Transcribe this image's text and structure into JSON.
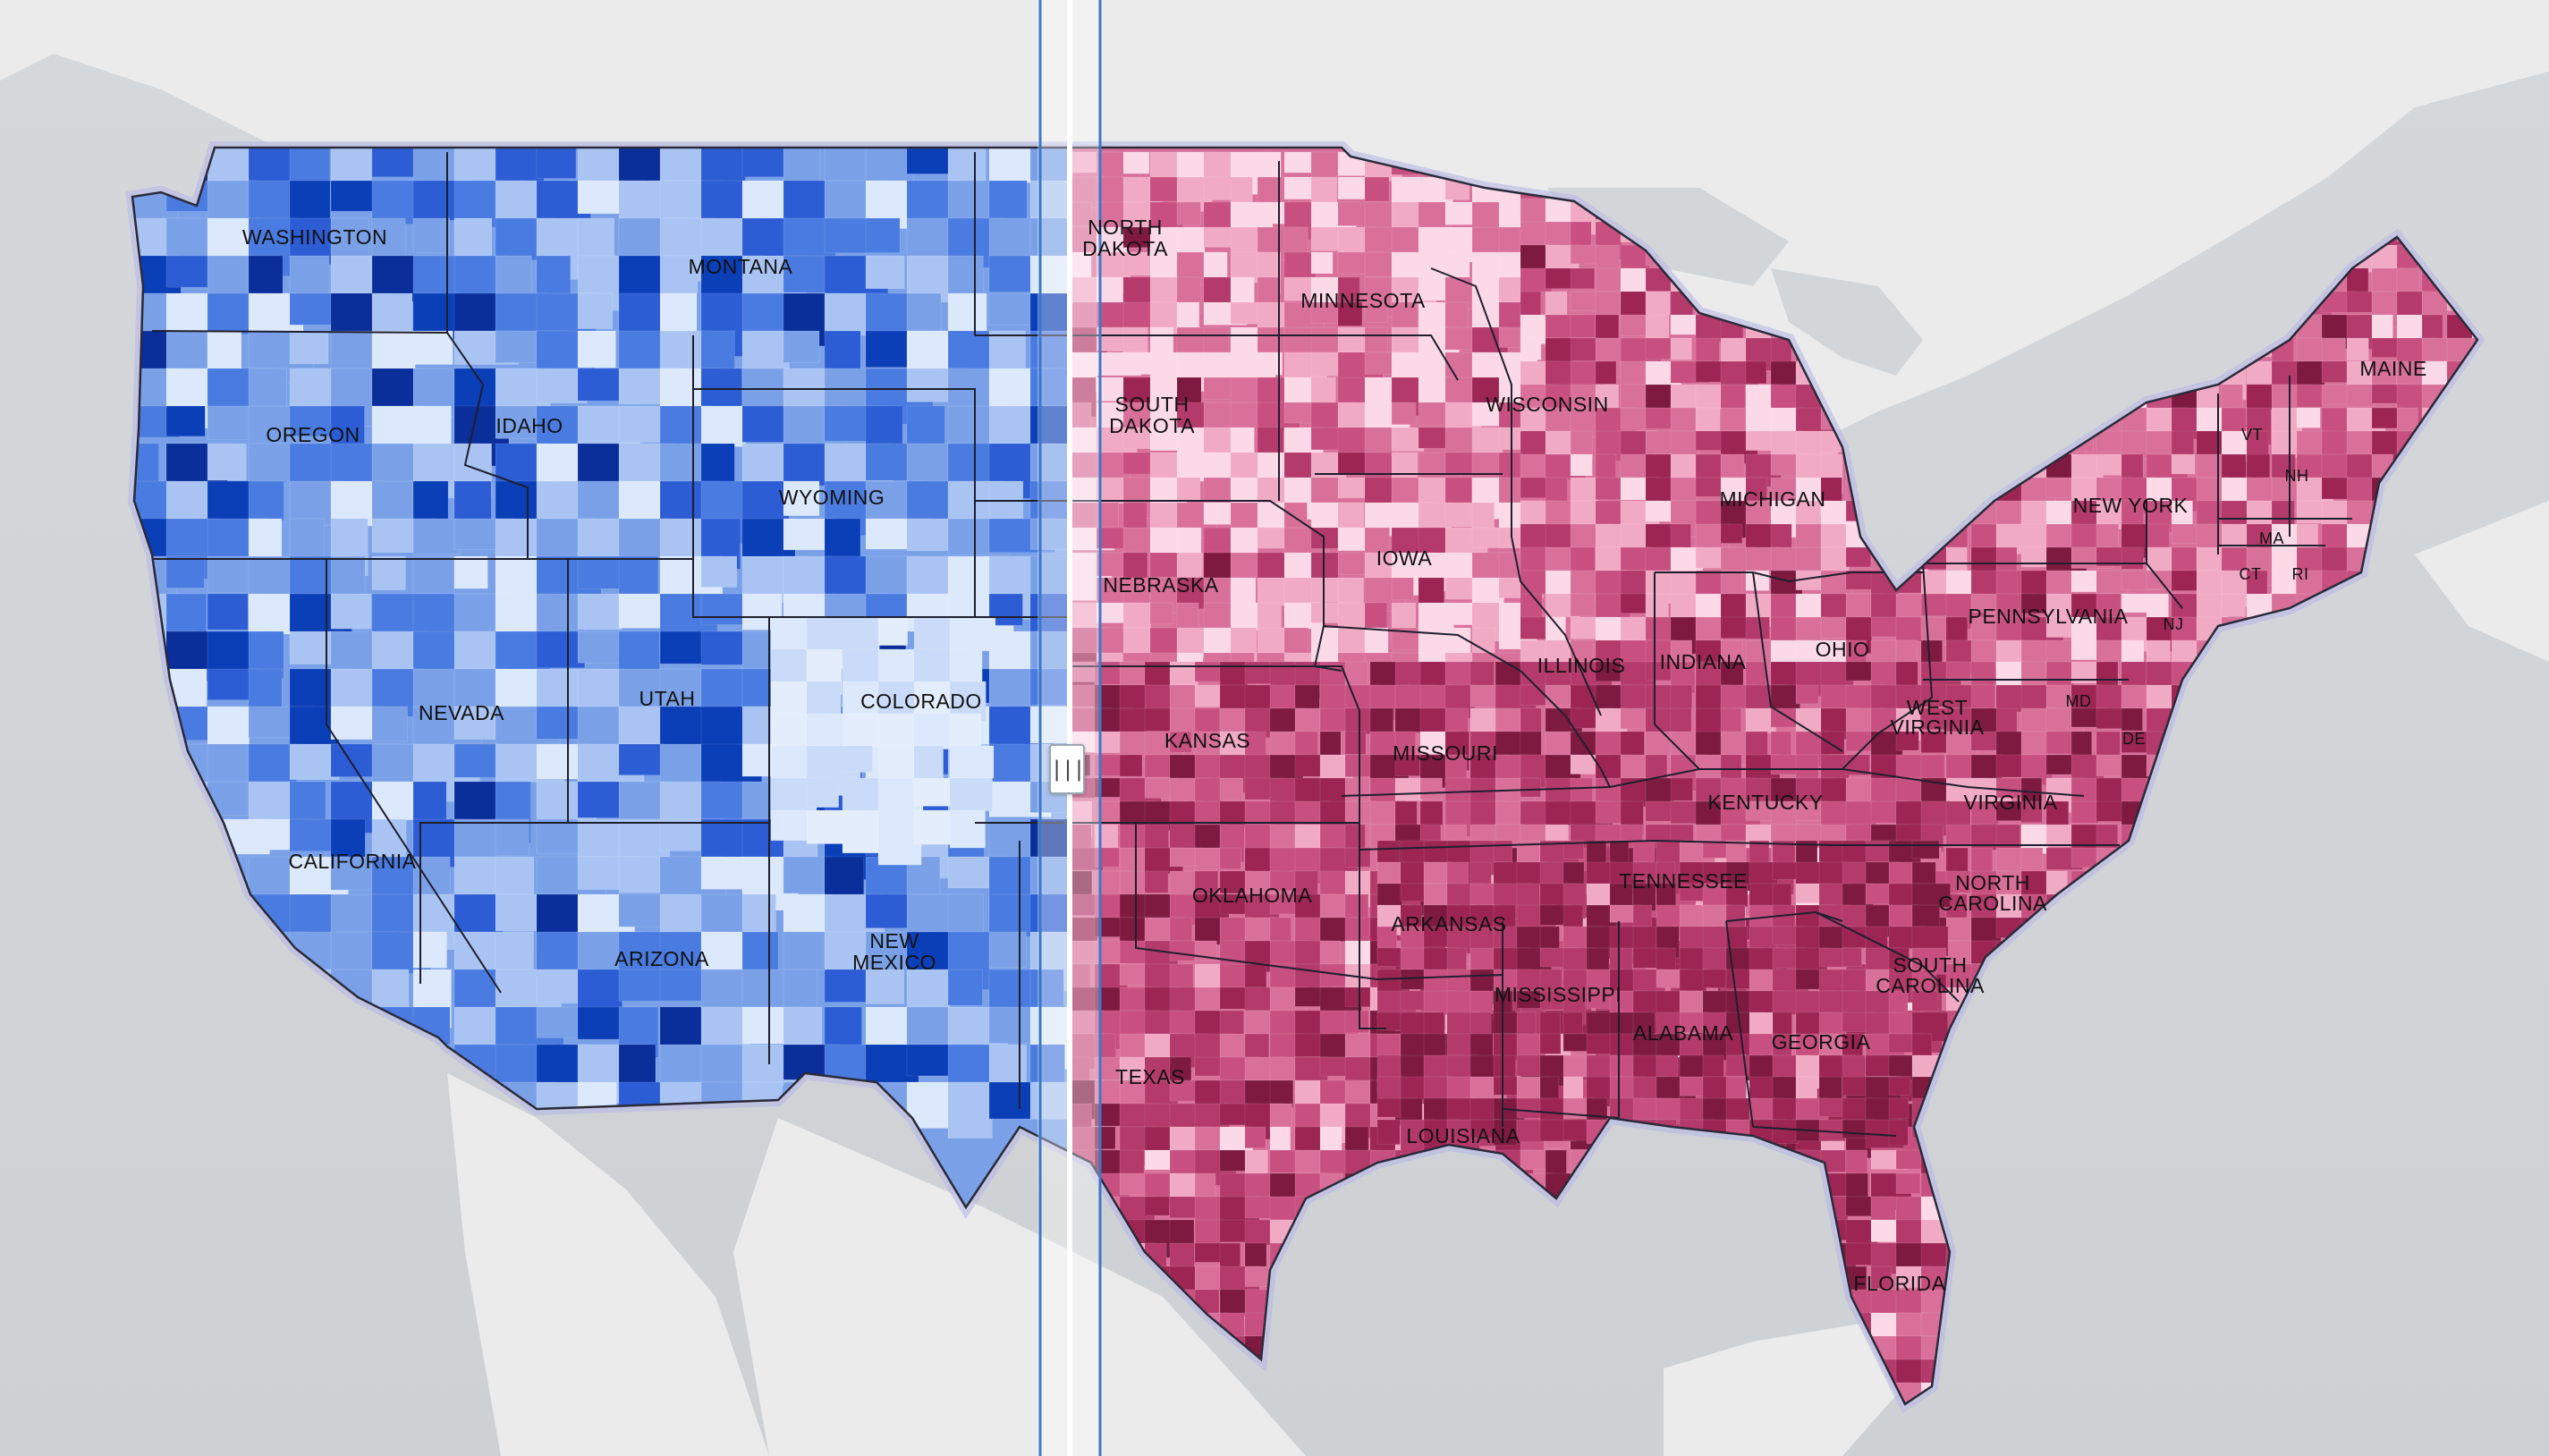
{
  "map": {
    "basemap": "light-gray-canvas",
    "left_layer": {
      "style": "blue choropleth",
      "colors": [
        "#dce8fb",
        "#a9c4f3",
        "#7aa1e8",
        "#4a7be0",
        "#2c5dd4",
        "#0b3fb8",
        "#0a2e9a"
      ]
    },
    "right_layer": {
      "style": "red choropleth",
      "colors": [
        "#fbd9e6",
        "#f1aac4",
        "#d9709a",
        "#c85080",
        "#b33a6a",
        "#9c2553",
        "#7e1a40"
      ]
    },
    "swipe": {
      "position_fraction": 0.42,
      "handle_glyph": "|||"
    }
  },
  "labels": {
    "washington": "WASHINGTON",
    "montana": "MONTANA",
    "north_dakota": [
      "NORTH",
      "DAKOTA"
    ],
    "minnesota": "MINNESOTA",
    "oregon": "OREGON",
    "idaho": "IDAHO",
    "wyoming": "WYOMING",
    "south_dakota": [
      "SOUTH",
      "DAKOTA"
    ],
    "wisconsin": "WISCONSIN",
    "michigan": "MICHIGAN",
    "maine": "MAINE",
    "vt": "VT",
    "nh": "NH",
    "ma": "MA",
    "ct": "CT",
    "ri": "RI",
    "nj": "NJ",
    "md": "MD",
    "de": "DE",
    "new_york": "NEW YORK",
    "nevada": "NEVADA",
    "utah": "UTAH",
    "colorado": "COLORADO",
    "nebraska": "NEBRASKA",
    "iowa": "IOWA",
    "illinois": "ILLINOIS",
    "indiana": "INDIANA",
    "ohio": "OHIO",
    "pennsylvania": "PENNSYLVANIA",
    "west_virginia": [
      "WEST",
      "VIRGINIA"
    ],
    "virginia": "VIRGINIA",
    "kansas": "KANSAS",
    "missouri": "MISSOURI",
    "kentucky": "KENTUCKY",
    "california": "CALIFORNIA",
    "arizona": "ARIZONA",
    "new_mexico": [
      "NEW",
      "MEXICO"
    ],
    "oklahoma": "OKLAHOMA",
    "arkansas": "ARKANSAS",
    "tennessee": "TENNESSEE",
    "north_carolina": [
      "NORTH",
      "CAROLINA"
    ],
    "south_carolina": [
      "SOUTH",
      "CAROLINA"
    ],
    "mississippi": "MISSISSIPPI",
    "alabama": "ALABAMA",
    "georgia": "GEORGIA",
    "texas": "TEXAS",
    "louisiana": "LOUISIANA",
    "florida": "FLORIDA"
  }
}
